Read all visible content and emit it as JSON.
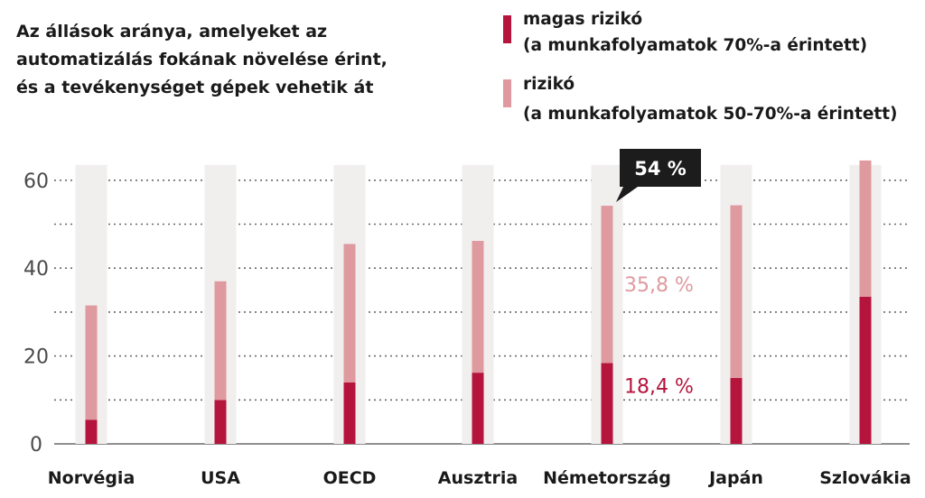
{
  "chart_data": {
    "type": "bar",
    "stacked": true,
    "title_lines": [
      "Az állások aránya, amelyeket az",
      "automatizálás fokának növelése érint,",
      "és a tevékenységet gépek vehetik át"
    ],
    "categories": [
      "Norvégia",
      "USA",
      "OECD",
      "Ausztria",
      "Németország",
      "Japán",
      "Szlovákia"
    ],
    "series": [
      {
        "legend_lines": [
          "magas rizikó",
          "(a munkafolyamatok 70%-a érintett)"
        ],
        "color": "#b5143c",
        "values": [
          5.5,
          10,
          14,
          16.2,
          18.4,
          15,
          33.5
        ]
      },
      {
        "legend_lines": [
          "rizikó",
          "(a munkafolyamatok 50-70%-a érintett)"
        ],
        "color": "#df9a9f",
        "values": [
          26,
          27,
          31.5,
          30,
          35.8,
          39.3,
          31
        ]
      }
    ],
    "yticks": [
      0,
      20,
      40,
      60
    ],
    "ylim": [
      0,
      66
    ],
    "grid": "dotted-horizontal",
    "background_band_color": "#f1eeee",
    "callout": {
      "category": "Németország",
      "total_label": "54 %",
      "high_label": "18,4 %",
      "risk_label": "35,8 %"
    }
  }
}
